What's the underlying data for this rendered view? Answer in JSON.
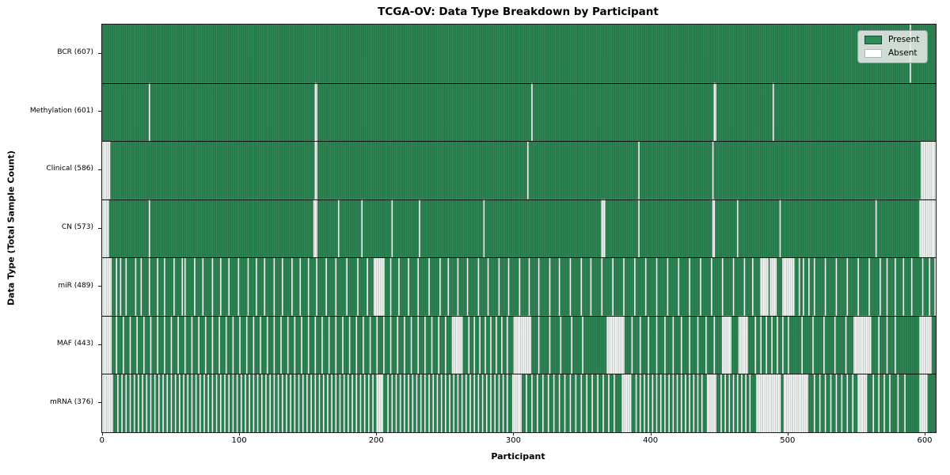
{
  "colors": {
    "present": "#2e8b57",
    "absent": "#ffffff",
    "bar_edge": "rgba(0,0,0,0.30)",
    "row_separator": "rgba(0,0,0,0.9)",
    "legend_bg": "rgba(236,236,236,0.85)"
  },
  "chart_data": {
    "type": "heatmap",
    "title": "TCGA-OV: Data Type Breakdown by Participant",
    "xlabel": "Participant",
    "ylabel": "Data Type (Total Sample Count)",
    "legend": {
      "present": "Present",
      "absent": "Absent"
    },
    "legend_position": "upper right",
    "n_participants": 608,
    "x_ticks": [
      0,
      100,
      200,
      300,
      400,
      500,
      600
    ],
    "cell_values": "1 = Present (green), 0 = Absent (white); absent lists below give participant indices, entries are index, [start,end] or [start,end,step]",
    "rows": [
      {
        "label": "BCR (607)",
        "name": "BCR",
        "present_count": 607,
        "absent": [
          589
        ]
      },
      {
        "label": "Methylation (601)",
        "name": "Methylation",
        "present_count": 601,
        "absent": [
          34,
          [
            155,
            156
          ],
          313,
          [
            446,
            447
          ],
          489
        ]
      },
      {
        "label": "Clinical (586)",
        "name": "Clinical",
        "present_count": 586,
        "absent": [
          [
            0,
            5
          ],
          [
            155,
            156
          ],
          310,
          391,
          445,
          [
            597,
            607
          ]
        ]
      },
      {
        "label": "CN (573)",
        "name": "CN",
        "present_count": 573,
        "absent": [
          [
            0,
            4
          ],
          34,
          [
            154,
            156
          ],
          172,
          189,
          211,
          231,
          278,
          [
            364,
            366
          ],
          391,
          [
            445,
            446
          ],
          463,
          494,
          564,
          [
            596,
            607
          ]
        ]
      },
      {
        "label": "miR (489)",
        "name": "miR",
        "present_count": 489,
        "absent": [
          [
            0,
            6
          ],
          10,
          13,
          17,
          24,
          28,
          34,
          40,
          45,
          52,
          58,
          60,
          67,
          73,
          80,
          86,
          92,
          99,
          106,
          112,
          118,
          125,
          131,
          138,
          144,
          150,
          156,
          163,
          170,
          178,
          186,
          193,
          [
            198,
            205
          ],
          210,
          216,
          223,
          230,
          238,
          246,
          252,
          259,
          266,
          274,
          281,
          289,
          296,
          304,
          311,
          318,
          326,
          333,
          341,
          349,
          356,
          364,
          372,
          380,
          388,
          396,
          404,
          412,
          420,
          428,
          436,
          444,
          452,
          460,
          468,
          474,
          [
            480,
            485
          ],
          [
            487,
            491
          ],
          [
            496,
            504
          ],
          508,
          511,
          515,
          519,
          527,
          535,
          543,
          551,
          559,
          567,
          572,
          578,
          584,
          590,
          598,
          603,
          607
        ]
      },
      {
        "label": "MAF (443)",
        "name": "MAF",
        "present_count": 443,
        "absent": [
          [
            0,
            6
          ],
          [
            10,
            250,
            5
          ],
          [
            255,
            262
          ],
          [
            267,
            295,
            4
          ],
          [
            300,
            312
          ],
          [
            318,
            350,
            8
          ],
          [
            368,
            380
          ],
          [
            386,
            446,
            6
          ],
          [
            452,
            458
          ],
          [
            464,
            470
          ],
          [
            476,
            500,
            4
          ],
          [
            510,
            542,
            8
          ],
          [
            548,
            560
          ],
          [
            566,
            578,
            6
          ],
          [
            596,
            604
          ]
        ]
      },
      {
        "label": "mRNA (376)",
        "name": "mRNA",
        "present_count": 376,
        "absent": [
          [
            0,
            7
          ],
          [
            11,
            197,
            3
          ],
          [
            200,
            204
          ],
          [
            208,
            295,
            3
          ],
          [
            299,
            305
          ],
          [
            309,
            373,
            4
          ],
          [
            379,
            385
          ],
          [
            389,
            437,
            3
          ],
          [
            441,
            447
          ],
          [
            451,
            472,
            3
          ],
          [
            477,
            494
          ],
          [
            497,
            514
          ],
          [
            519,
            547,
            4
          ],
          [
            551,
            557
          ],
          [
            562,
            574,
            4
          ],
          580,
          585,
          [
            596,
            601
          ]
        ]
      }
    ]
  }
}
